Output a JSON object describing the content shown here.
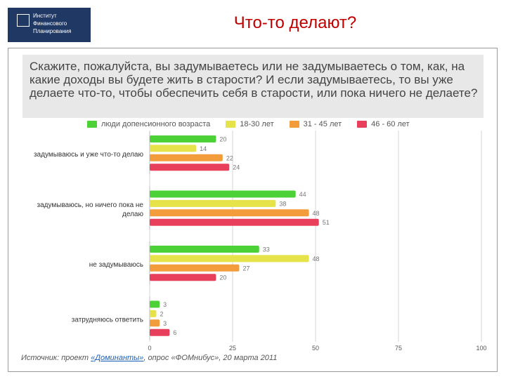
{
  "logo": {
    "lines": [
      "Институт",
      "Финансового",
      "Планирования"
    ]
  },
  "slide_title": "Что-то делают?",
  "question": "Скажите, пожалуйста, вы задумываетесь или не задумываетесь о том, как, на какие доходы вы будете жить в старости? И если задумываетесь, то вы уже делаете что-то, чтобы обеспечить себя в старости, или пока ничего не делаете?",
  "source": {
    "prefix": "Источник: проект ",
    "link": "«Доминанты»",
    "suffix": ", опрос «ФОМнибус», 20 марта 2011"
  },
  "chart_data": {
    "type": "bar",
    "orientation": "horizontal",
    "categories": [
      "задумываюсь и уже что-то делаю",
      "задумываюсь, но ничего пока не делаю",
      "не задумываюсь",
      "затрудняюсь ответить"
    ],
    "category_lines": [
      [
        "задумываюсь и уже что-то делаю"
      ],
      [
        "задумываюсь, но ничего пока не",
        "делаю"
      ],
      [
        "не задумываюсь"
      ],
      [
        "затрудняюсь ответить"
      ]
    ],
    "series": [
      {
        "name": "люди допенсионного возраста",
        "color": "#4cd137",
        "values": [
          20,
          44,
          33,
          3
        ]
      },
      {
        "name": "18-30 лет",
        "color": "#e6e24a",
        "values": [
          14,
          38,
          48,
          2
        ]
      },
      {
        "name": "31 - 45 лет",
        "color": "#f39c3c",
        "values": [
          22,
          48,
          27,
          3
        ]
      },
      {
        "name": "46 - 60 лет",
        "color": "#e8405c",
        "values": [
          24,
          51,
          20,
          6
        ]
      }
    ],
    "xlim": [
      0,
      100
    ],
    "xticks": [
      0,
      25,
      50,
      75,
      100
    ],
    "grid": true,
    "legend_position": "top"
  }
}
